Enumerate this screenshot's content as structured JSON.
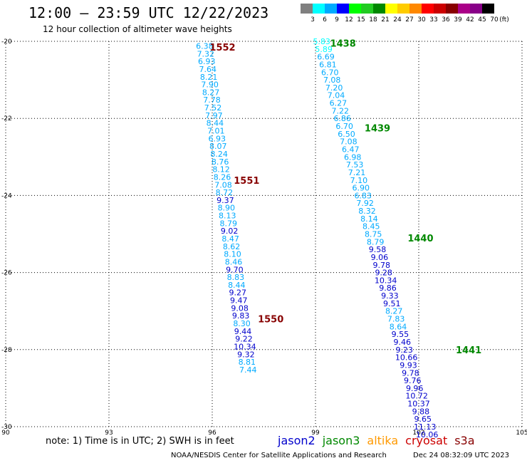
{
  "title": "12:00 — 23:59 UTC 12/22/2023",
  "subtitle": "12 hour collection of altimeter wave heights",
  "colorbar": {
    "unit": "(ft)",
    "labels": [
      "3",
      "6",
      "9",
      "12",
      "15",
      "18",
      "21",
      "24",
      "27",
      "30",
      "33",
      "36",
      "39",
      "42",
      "45",
      "70"
    ],
    "colors": [
      "#808080",
      "#00ffff",
      "#00aaff",
      "#0000ff",
      "#00ff00",
      "#22cc22",
      "#008800",
      "#ffff00",
      "#ffcc00",
      "#ff8800",
      "#ff0000",
      "#cc0000",
      "#880000",
      "#aa0088",
      "#880088",
      "#000000"
    ]
  },
  "axes": {
    "lat_labels": [
      "-20",
      "-22",
      "-24",
      "-26",
      "-28",
      "-30"
    ],
    "lon_labels": [
      "90",
      "93",
      "96",
      "99",
      "102",
      "105"
    ]
  },
  "tracks": [
    {
      "satellite": "cryosat",
      "pass_labels": [
        {
          "text": "1552",
          "lon": 96.3,
          "lat": -20.15
        },
        {
          "text": "1551",
          "lon": 97.0,
          "lat": -23.6
        },
        {
          "text": "1550",
          "lon": 97.7,
          "lat": -27.2
        }
      ],
      "points": [
        {
          "lon": 95.78,
          "lat": -20.12,
          "v": "6.38",
          "c": "#00aaff"
        },
        {
          "lon": 95.81,
          "lat": -20.32,
          "v": "7.32",
          "c": "#00aaff"
        },
        {
          "lon": 95.84,
          "lat": -20.52,
          "v": "6.93",
          "c": "#00aaff"
        },
        {
          "lon": 95.87,
          "lat": -20.72,
          "v": "7.64",
          "c": "#00aaff"
        },
        {
          "lon": 95.9,
          "lat": -20.92,
          "v": "8.21",
          "c": "#00aaff"
        },
        {
          "lon": 95.93,
          "lat": -21.12,
          "v": "7.90",
          "c": "#00aaff"
        },
        {
          "lon": 95.96,
          "lat": -21.32,
          "v": "8.27",
          "c": "#00aaff"
        },
        {
          "lon": 95.99,
          "lat": -21.52,
          "v": "7.78",
          "c": "#00aaff"
        },
        {
          "lon": 96.02,
          "lat": -21.72,
          "v": "7.52",
          "c": "#00aaff"
        },
        {
          "lon": 96.05,
          "lat": -21.92,
          "v": "7.97",
          "c": "#00aaff"
        },
        {
          "lon": 96.08,
          "lat": -22.12,
          "v": "8.44",
          "c": "#00aaff"
        },
        {
          "lon": 96.11,
          "lat": -22.32,
          "v": "7.01",
          "c": "#00aaff"
        },
        {
          "lon": 96.14,
          "lat": -22.52,
          "v": "6.93",
          "c": "#00aaff"
        },
        {
          "lon": 96.17,
          "lat": -22.72,
          "v": "8.07",
          "c": "#00aaff"
        },
        {
          "lon": 96.2,
          "lat": -22.92,
          "v": "8.24",
          "c": "#00aaff"
        },
        {
          "lon": 96.23,
          "lat": -23.12,
          "v": "8.76",
          "c": "#00aaff"
        },
        {
          "lon": 96.26,
          "lat": -23.32,
          "v": "8.12",
          "c": "#00aaff"
        },
        {
          "lon": 96.29,
          "lat": -23.52,
          "v": "8.26",
          "c": "#00aaff"
        },
        {
          "lon": 96.32,
          "lat": -23.72,
          "v": "7.08",
          "c": "#00aaff"
        },
        {
          "lon": 96.35,
          "lat": -23.92,
          "v": "8.72",
          "c": "#00aaff"
        },
        {
          "lon": 96.38,
          "lat": -24.12,
          "v": "9.37",
          "c": "#0000cc"
        },
        {
          "lon": 96.41,
          "lat": -24.32,
          "v": "8.90",
          "c": "#00aaff"
        },
        {
          "lon": 96.44,
          "lat": -24.52,
          "v": "8.13",
          "c": "#00aaff"
        },
        {
          "lon": 96.47,
          "lat": -24.72,
          "v": "8.79",
          "c": "#00aaff"
        },
        {
          "lon": 96.5,
          "lat": -24.92,
          "v": "9.02",
          "c": "#0000cc"
        },
        {
          "lon": 96.53,
          "lat": -25.12,
          "v": "8.47",
          "c": "#00aaff"
        },
        {
          "lon": 96.56,
          "lat": -25.32,
          "v": "8.62",
          "c": "#00aaff"
        },
        {
          "lon": 96.59,
          "lat": -25.52,
          "v": "8.10",
          "c": "#00aaff"
        },
        {
          "lon": 96.62,
          "lat": -25.72,
          "v": "8.46",
          "c": "#00aaff"
        },
        {
          "lon": 96.65,
          "lat": -25.92,
          "v": "9.70",
          "c": "#0000cc"
        },
        {
          "lon": 96.68,
          "lat": -26.12,
          "v": "8.83",
          "c": "#00aaff"
        },
        {
          "lon": 96.71,
          "lat": -26.32,
          "v": "8.44",
          "c": "#00aaff"
        },
        {
          "lon": 96.74,
          "lat": -26.52,
          "v": "9.27",
          "c": "#0000cc"
        },
        {
          "lon": 96.77,
          "lat": -26.72,
          "v": "9.47",
          "c": "#0000cc"
        },
        {
          "lon": 96.8,
          "lat": -26.92,
          "v": "9.08",
          "c": "#0000cc"
        },
        {
          "lon": 96.83,
          "lat": -27.12,
          "v": "9.83",
          "c": "#0000cc"
        },
        {
          "lon": 96.86,
          "lat": -27.32,
          "v": "8.30",
          "c": "#00aaff"
        },
        {
          "lon": 96.89,
          "lat": -27.52,
          "v": "9.44",
          "c": "#0000cc"
        },
        {
          "lon": 96.92,
          "lat": -27.72,
          "v": "9.22",
          "c": "#0000cc"
        },
        {
          "lon": 96.95,
          "lat": -27.92,
          "v": "10.34",
          "c": "#0000cc"
        },
        {
          "lon": 96.98,
          "lat": -28.12,
          "v": "9.32",
          "c": "#0000cc"
        },
        {
          "lon": 97.01,
          "lat": -28.32,
          "v": "8.81",
          "c": "#00aaff"
        },
        {
          "lon": 97.04,
          "lat": -28.52,
          "v": "7.44",
          "c": "#00aaff"
        }
      ]
    },
    {
      "satellite": "jason3",
      "pass_labels": [
        {
          "text": "1438",
          "lon": 99.8,
          "lat": -20.05
        },
        {
          "text": "1439",
          "lon": 100.8,
          "lat": -22.25
        },
        {
          "text": "1440",
          "lon": 102.05,
          "lat": -25.1
        },
        {
          "text": "1441",
          "lon": 103.45,
          "lat": -28.0
        }
      ],
      "points": [
        {
          "lon": 99.18,
          "lat": -20.0,
          "v": "5.83",
          "c": "#00ffff"
        },
        {
          "lon": 99.24,
          "lat": -20.2,
          "v": "5.89",
          "c": "#00ffff"
        },
        {
          "lon": 99.3,
          "lat": -20.4,
          "v": "6.69",
          "c": "#00aaff"
        },
        {
          "lon": 99.36,
          "lat": -20.6,
          "v": "6.81",
          "c": "#00aaff"
        },
        {
          "lon": 99.42,
          "lat": -20.8,
          "v": "6.70",
          "c": "#00aaff"
        },
        {
          "lon": 99.48,
          "lat": -21.0,
          "v": "7.08",
          "c": "#00aaff"
        },
        {
          "lon": 99.54,
          "lat": -21.2,
          "v": "7.20",
          "c": "#00aaff"
        },
        {
          "lon": 99.6,
          "lat": -21.4,
          "v": "7.04",
          "c": "#00aaff"
        },
        {
          "lon": 99.66,
          "lat": -21.6,
          "v": "6.27",
          "c": "#00aaff"
        },
        {
          "lon": 99.72,
          "lat": -21.8,
          "v": "7.22",
          "c": "#00aaff"
        },
        {
          "lon": 99.78,
          "lat": -22.0,
          "v": "6.86",
          "c": "#00aaff"
        },
        {
          "lon": 99.84,
          "lat": -22.2,
          "v": "6.70",
          "c": "#00aaff"
        },
        {
          "lon": 99.9,
          "lat": -22.4,
          "v": "6.50",
          "c": "#00aaff"
        },
        {
          "lon": 99.96,
          "lat": -22.6,
          "v": "7.08",
          "c": "#00aaff"
        },
        {
          "lon": 100.02,
          "lat": -22.8,
          "v": "6.47",
          "c": "#00aaff"
        },
        {
          "lon": 100.08,
          "lat": -23.0,
          "v": "6.98",
          "c": "#00aaff"
        },
        {
          "lon": 100.14,
          "lat": -23.2,
          "v": "7.53",
          "c": "#00aaff"
        },
        {
          "lon": 100.2,
          "lat": -23.4,
          "v": "7.21",
          "c": "#00aaff"
        },
        {
          "lon": 100.26,
          "lat": -23.6,
          "v": "7.10",
          "c": "#00aaff"
        },
        {
          "lon": 100.32,
          "lat": -23.8,
          "v": "6.90",
          "c": "#00aaff"
        },
        {
          "lon": 100.38,
          "lat": -24.0,
          "v": "6.83",
          "c": "#00aaff"
        },
        {
          "lon": 100.44,
          "lat": -24.2,
          "v": "7.92",
          "c": "#00aaff"
        },
        {
          "lon": 100.5,
          "lat": -24.4,
          "v": "8.32",
          "c": "#00aaff"
        },
        {
          "lon": 100.56,
          "lat": -24.6,
          "v": "8.14",
          "c": "#00aaff"
        },
        {
          "lon": 100.62,
          "lat": -24.8,
          "v": "8.45",
          "c": "#00aaff"
        },
        {
          "lon": 100.68,
          "lat": -25.0,
          "v": "8.75",
          "c": "#00aaff"
        },
        {
          "lon": 100.74,
          "lat": -25.2,
          "v": "8.79",
          "c": "#00aaff"
        },
        {
          "lon": 100.8,
          "lat": -25.4,
          "v": "9.58",
          "c": "#0000cc"
        },
        {
          "lon": 100.86,
          "lat": -25.6,
          "v": "9.06",
          "c": "#0000cc"
        },
        {
          "lon": 100.92,
          "lat": -25.8,
          "v": "9.78",
          "c": "#0000cc"
        },
        {
          "lon": 100.98,
          "lat": -26.0,
          "v": "9.28",
          "c": "#0000cc"
        },
        {
          "lon": 101.04,
          "lat": -26.2,
          "v": "10.34",
          "c": "#0000cc"
        },
        {
          "lon": 101.1,
          "lat": -26.4,
          "v": "9.86",
          "c": "#0000cc"
        },
        {
          "lon": 101.16,
          "lat": -26.6,
          "v": "9.33",
          "c": "#0000cc"
        },
        {
          "lon": 101.22,
          "lat": -26.8,
          "v": "9.51",
          "c": "#0000cc"
        },
        {
          "lon": 101.28,
          "lat": -27.0,
          "v": "8.27",
          "c": "#00aaff"
        },
        {
          "lon": 101.34,
          "lat": -27.2,
          "v": "7.83",
          "c": "#00aaff"
        },
        {
          "lon": 101.4,
          "lat": -27.4,
          "v": "8.64",
          "c": "#00aaff"
        },
        {
          "lon": 101.46,
          "lat": -27.6,
          "v": "9.55",
          "c": "#0000cc"
        },
        {
          "lon": 101.52,
          "lat": -27.8,
          "v": "9.46",
          "c": "#0000cc"
        },
        {
          "lon": 101.58,
          "lat": -28.0,
          "v": "9.23",
          "c": "#0000cc"
        },
        {
          "lon": 101.64,
          "lat": -28.2,
          "v": "10.66",
          "c": "#0000cc"
        },
        {
          "lon": 101.7,
          "lat": -28.4,
          "v": "9.93",
          "c": "#0000cc"
        },
        {
          "lon": 101.76,
          "lat": -28.6,
          "v": "9.78",
          "c": "#0000cc"
        },
        {
          "lon": 101.82,
          "lat": -28.8,
          "v": "9.76",
          "c": "#0000cc"
        },
        {
          "lon": 101.88,
          "lat": -29.0,
          "v": "9.96",
          "c": "#0000cc"
        },
        {
          "lon": 101.94,
          "lat": -29.2,
          "v": "10.72",
          "c": "#0000cc"
        },
        {
          "lon": 102.0,
          "lat": -29.4,
          "v": "10.37",
          "c": "#0000cc"
        },
        {
          "lon": 102.06,
          "lat": -29.6,
          "v": "9.88",
          "c": "#0000cc"
        },
        {
          "lon": 102.12,
          "lat": -29.8,
          "v": "9.65",
          "c": "#0000cc"
        },
        {
          "lon": 102.18,
          "lat": -30.0,
          "v": "11.13",
          "c": "#0000cc"
        },
        {
          "lon": 102.24,
          "lat": -30.2,
          "v": "10.06",
          "c": "#0000cc"
        }
      ]
    }
  ],
  "footer": {
    "note": "note:  1) Time is in UTC; 2) SWH is in feet",
    "satellites": [
      {
        "name": "jason2",
        "color": "#0000cc"
      },
      {
        "name": "jason3",
        "color": "#008800"
      },
      {
        "name": "altika",
        "color": "#ff9900"
      },
      {
        "name": "cryosat",
        "color": "#cc0000"
      },
      {
        "name": "s3a",
        "color": "#880000"
      }
    ],
    "credit": "NOAA/NESDIS Center for Satellite Applications and Research",
    "timestamp": "Dec 24 08:32:09 UTC 2023"
  }
}
